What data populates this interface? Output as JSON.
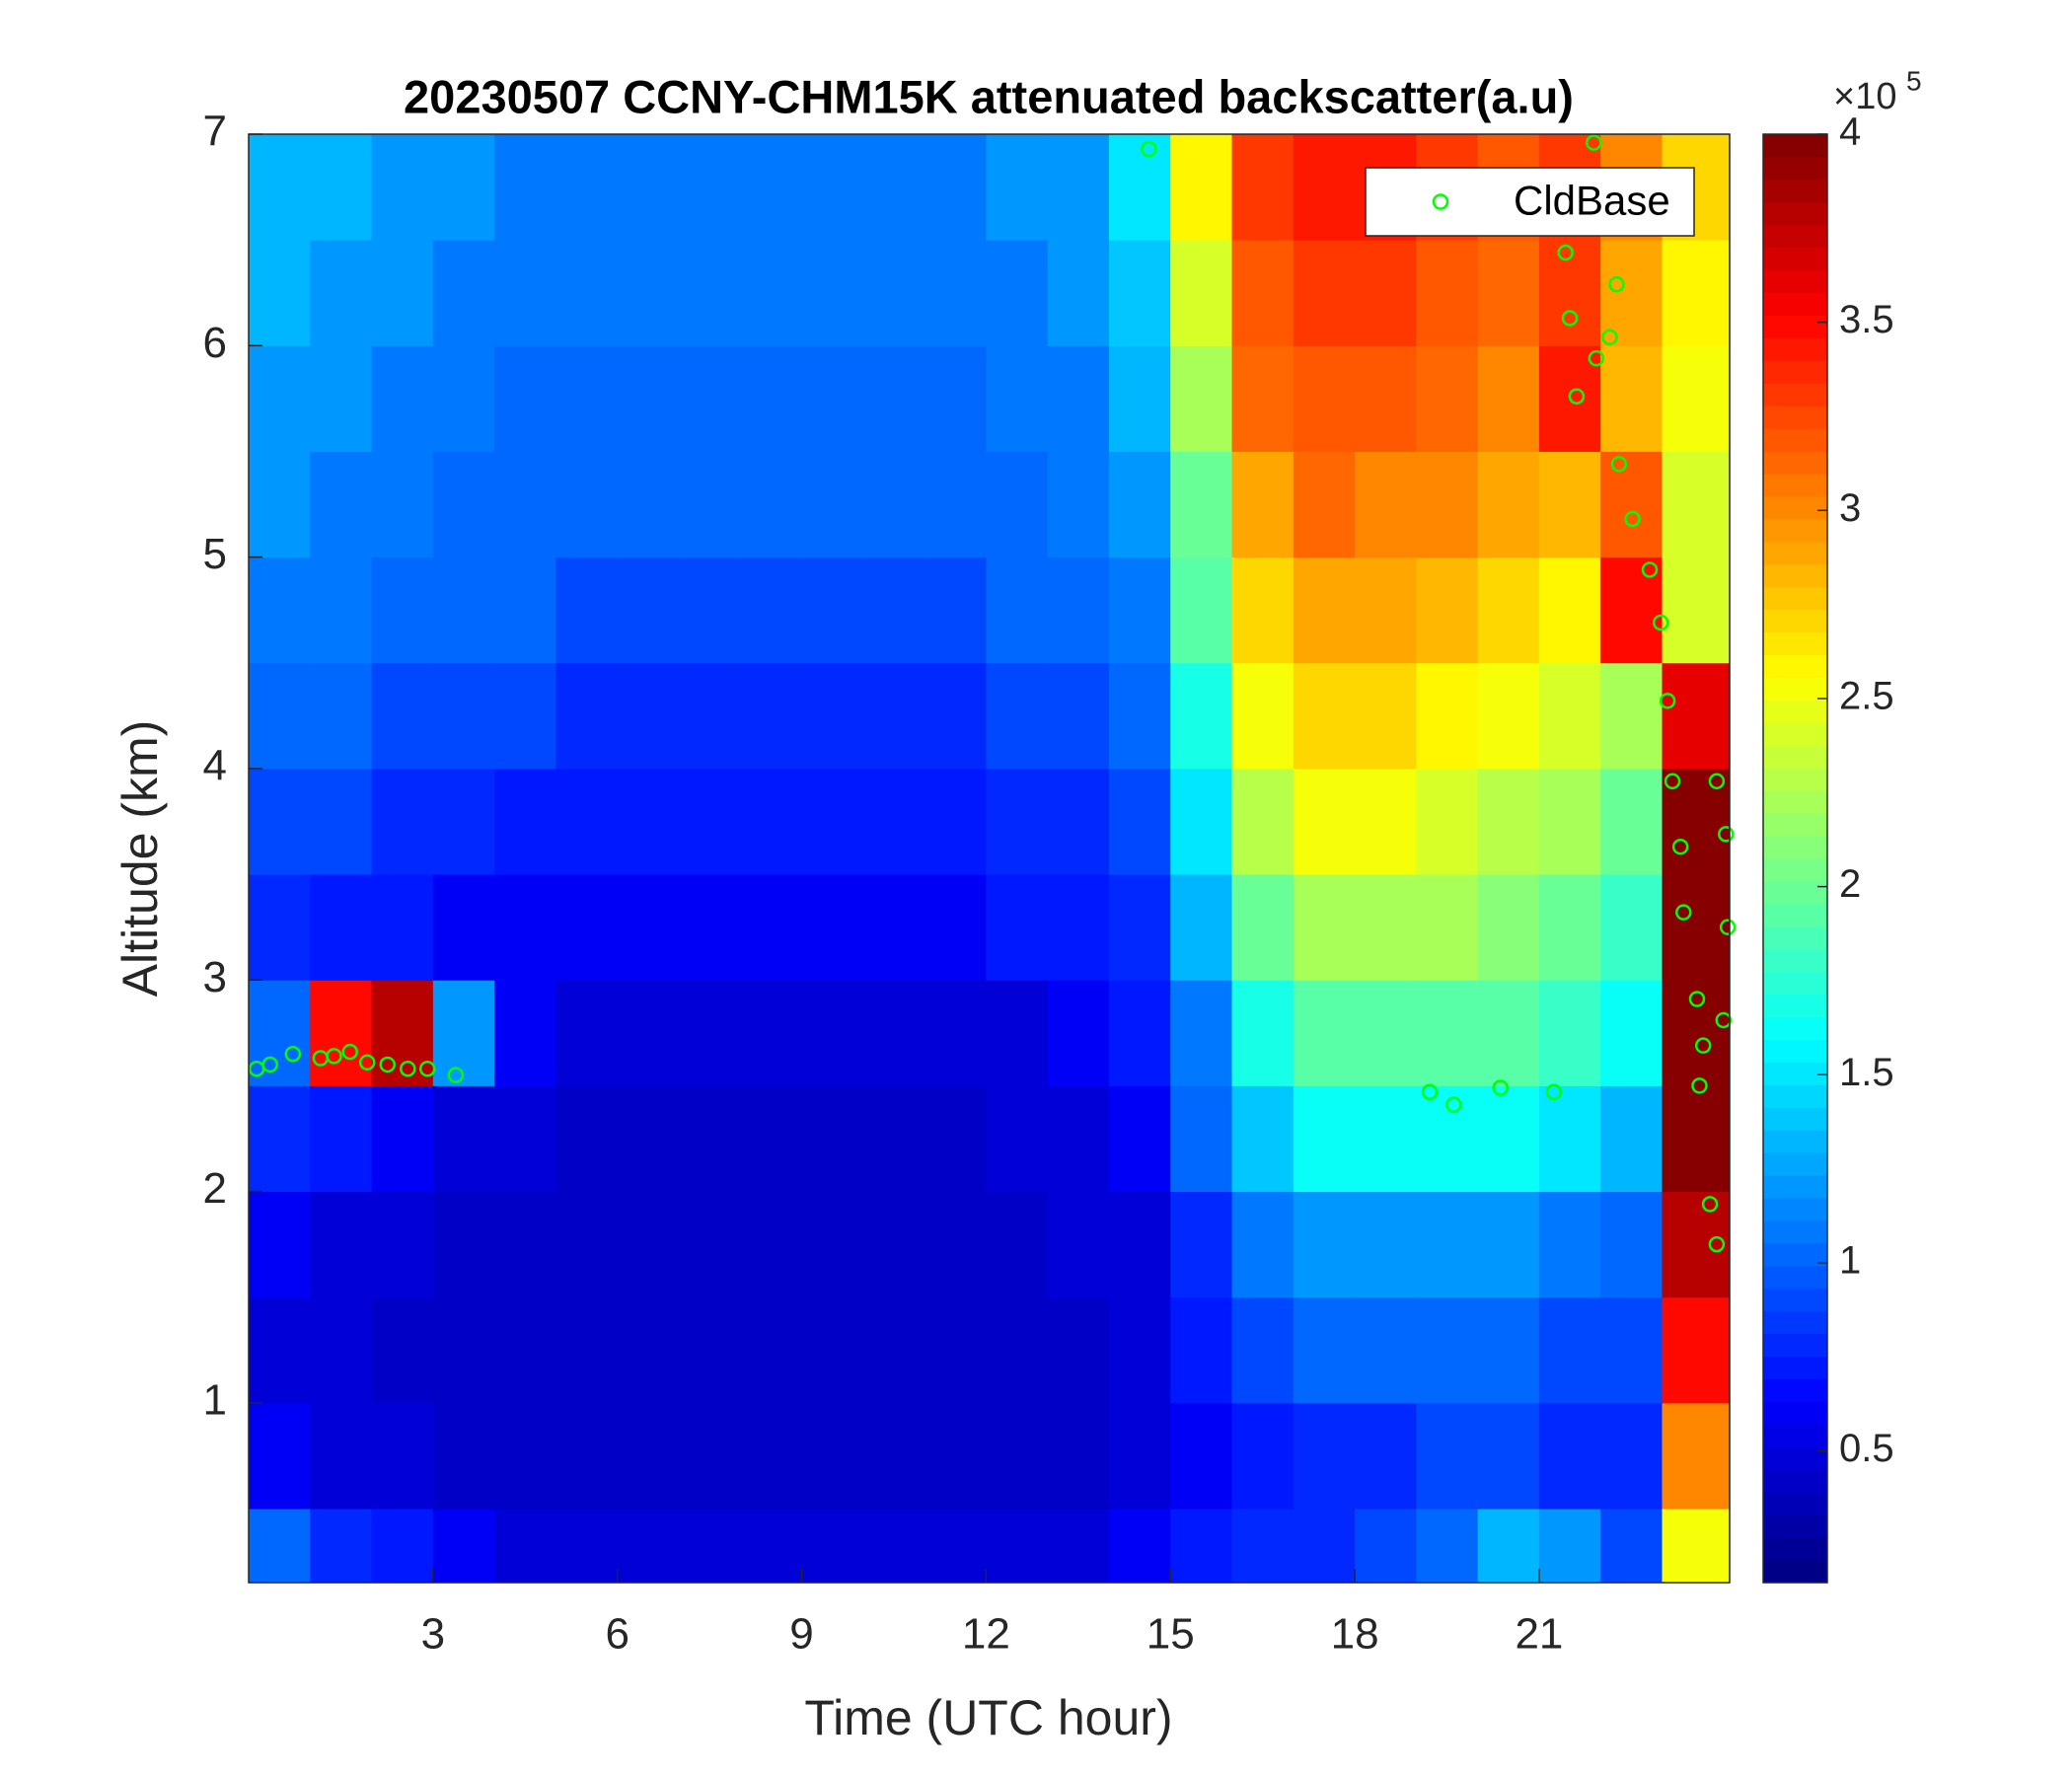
{
  "chart_data": {
    "type": "heatmap",
    "title": "20230507 CCNY-CHM15K attenuated backscatter(a.u)",
    "xlabel": "Time (UTC hour)",
    "ylabel": "Altitude (km)",
    "xlim": [
      0,
      24.1
    ],
    "xticks": [
      3,
      6,
      9,
      12,
      15,
      18,
      21
    ],
    "ylim": [
      0.15,
      7
    ],
    "yticks": [
      1,
      2,
      3,
      4,
      5,
      6,
      7
    ],
    "x_edges": [
      0,
      1,
      2,
      3,
      4,
      5,
      6,
      7,
      8,
      9,
      10,
      11,
      12,
      13,
      14,
      15,
      16,
      17,
      18,
      19,
      20,
      21,
      22,
      23,
      24.1
    ],
    "y_edges": [
      0.15,
      0.5,
      1,
      1.5,
      2,
      2.5,
      3,
      3.5,
      4,
      4.5,
      5,
      5.5,
      6,
      6.5,
      7
    ],
    "z": [
      [
        1.0,
        0.8,
        0.7,
        0.6,
        0.5,
        0.5,
        0.5,
        0.5,
        0.5,
        0.5,
        0.5,
        0.5,
        0.5,
        0.5,
        0.6,
        0.7,
        0.8,
        0.8,
        0.9,
        1.0,
        1.3,
        1.2,
        0.9,
        2.5
      ],
      [
        0.6,
        0.5,
        0.5,
        0.4,
        0.4,
        0.4,
        0.4,
        0.4,
        0.4,
        0.4,
        0.4,
        0.4,
        0.4,
        0.4,
        0.5,
        0.6,
        0.7,
        0.8,
        0.8,
        0.9,
        0.9,
        0.8,
        0.8,
        3.0
      ],
      [
        0.5,
        0.5,
        0.4,
        0.4,
        0.4,
        0.4,
        0.4,
        0.4,
        0.4,
        0.4,
        0.4,
        0.4,
        0.4,
        0.4,
        0.5,
        0.7,
        0.9,
        1.0,
        1.0,
        1.0,
        1.0,
        0.9,
        0.9,
        3.5
      ],
      [
        0.6,
        0.5,
        0.5,
        0.4,
        0.4,
        0.4,
        0.4,
        0.4,
        0.4,
        0.4,
        0.4,
        0.4,
        0.4,
        0.5,
        0.5,
        0.8,
        1.1,
        1.2,
        1.2,
        1.2,
        1.2,
        1.1,
        1.0,
        3.8
      ],
      [
        0.8,
        0.7,
        0.6,
        0.5,
        0.5,
        0.4,
        0.4,
        0.4,
        0.4,
        0.4,
        0.4,
        0.4,
        0.5,
        0.5,
        0.6,
        1.0,
        1.4,
        1.6,
        1.6,
        1.6,
        1.6,
        1.5,
        1.3,
        4.0
      ],
      [
        1.0,
        3.5,
        3.8,
        1.2,
        0.6,
        0.5,
        0.5,
        0.5,
        0.5,
        0.5,
        0.5,
        0.5,
        0.5,
        0.6,
        0.7,
        1.1,
        1.7,
        1.9,
        1.9,
        1.9,
        1.9,
        1.8,
        1.6,
        4.0
      ],
      [
        0.8,
        0.7,
        0.7,
        0.6,
        0.6,
        0.6,
        0.6,
        0.6,
        0.6,
        0.6,
        0.6,
        0.6,
        0.7,
        0.7,
        0.8,
        1.3,
        2.0,
        2.2,
        2.2,
        2.2,
        2.1,
        2.0,
        1.8,
        4.0
      ],
      [
        0.9,
        0.9,
        0.8,
        0.8,
        0.7,
        0.7,
        0.7,
        0.7,
        0.7,
        0.7,
        0.7,
        0.7,
        0.8,
        0.8,
        0.9,
        1.5,
        2.3,
        2.5,
        2.5,
        2.4,
        2.3,
        2.2,
        2.0,
        4.0
      ],
      [
        1.0,
        1.0,
        0.9,
        0.9,
        0.9,
        0.8,
        0.8,
        0.8,
        0.8,
        0.8,
        0.8,
        0.8,
        0.9,
        0.9,
        1.0,
        1.7,
        2.5,
        2.7,
        2.7,
        2.6,
        2.5,
        2.4,
        2.2,
        3.6
      ],
      [
        1.1,
        1.1,
        1.0,
        1.0,
        1.0,
        0.9,
        0.9,
        0.9,
        0.9,
        0.9,
        0.9,
        0.9,
        1.0,
        1.0,
        1.1,
        1.9,
        2.7,
        2.9,
        2.9,
        2.8,
        2.7,
        2.6,
        3.5,
        2.4
      ],
      [
        1.2,
        1.1,
        1.1,
        1.0,
        1.0,
        1.0,
        1.0,
        1.0,
        1.0,
        1.0,
        1.0,
        1.0,
        1.0,
        1.1,
        1.2,
        2.0,
        2.9,
        3.1,
        3.0,
        3.0,
        2.9,
        2.8,
        3.2,
        2.4
      ],
      [
        1.2,
        1.2,
        1.1,
        1.1,
        1.0,
        1.0,
        1.0,
        1.0,
        1.0,
        1.0,
        1.0,
        1.0,
        1.1,
        1.1,
        1.3,
        2.2,
        3.1,
        3.2,
        3.2,
        3.1,
        3.0,
        3.4,
        2.8,
        2.5
      ],
      [
        1.3,
        1.2,
        1.2,
        1.1,
        1.1,
        1.1,
        1.1,
        1.1,
        1.1,
        1.1,
        1.1,
        1.1,
        1.1,
        1.2,
        1.4,
        2.4,
        3.2,
        3.3,
        3.3,
        3.2,
        3.1,
        3.3,
        2.9,
        2.6
      ],
      [
        1.3,
        1.3,
        1.2,
        1.2,
        1.1,
        1.1,
        1.1,
        1.1,
        1.1,
        1.1,
        1.1,
        1.1,
        1.2,
        1.2,
        1.5,
        2.6,
        3.3,
        3.4,
        3.4,
        3.3,
        3.2,
        3.3,
        3.0,
        2.7
      ]
    ],
    "colormap": "jet",
    "clim": [
      0.15,
      4
    ],
    "cticks": [
      0.5,
      1,
      1.5,
      2,
      2.5,
      3,
      3.5,
      4
    ],
    "colorbar_multiplier": {
      "base": "×10",
      "exponent": "5"
    },
    "overlay": {
      "type": "scatter",
      "name": "CldBase",
      "color": "#00ff00",
      "x": [
        0.13,
        0.35,
        0.72,
        1.17,
        1.39,
        1.65,
        1.93,
        2.26,
        2.59,
        2.91,
        3.37,
        14.65,
        19.22,
        19.61,
        20.37,
        21.24,
        21.89,
        21.43,
        21.5,
        21.61,
        21.93,
        22.15,
        22.26,
        22.3,
        22.52,
        22.8,
        22.98,
        23.09,
        23.17,
        23.3,
        23.35,
        23.57,
        23.67,
        23.61,
        23.89,
        24.04,
        24.07,
        24.0,
        23.78,
        23.89
      ],
      "y": [
        2.58,
        2.6,
        2.65,
        2.63,
        2.64,
        2.66,
        2.61,
        2.6,
        2.58,
        2.58,
        2.55,
        6.93,
        2.47,
        2.41,
        2.49,
        2.47,
        6.96,
        6.44,
        6.13,
        5.76,
        5.94,
        6.04,
        6.29,
        5.44,
        5.18,
        4.94,
        4.69,
        4.32,
        3.94,
        3.63,
        3.32,
        2.91,
        2.69,
        2.5,
        3.94,
        3.69,
        3.25,
        2.81,
        1.94,
        1.75
      ]
    },
    "legend": "upper right"
  }
}
